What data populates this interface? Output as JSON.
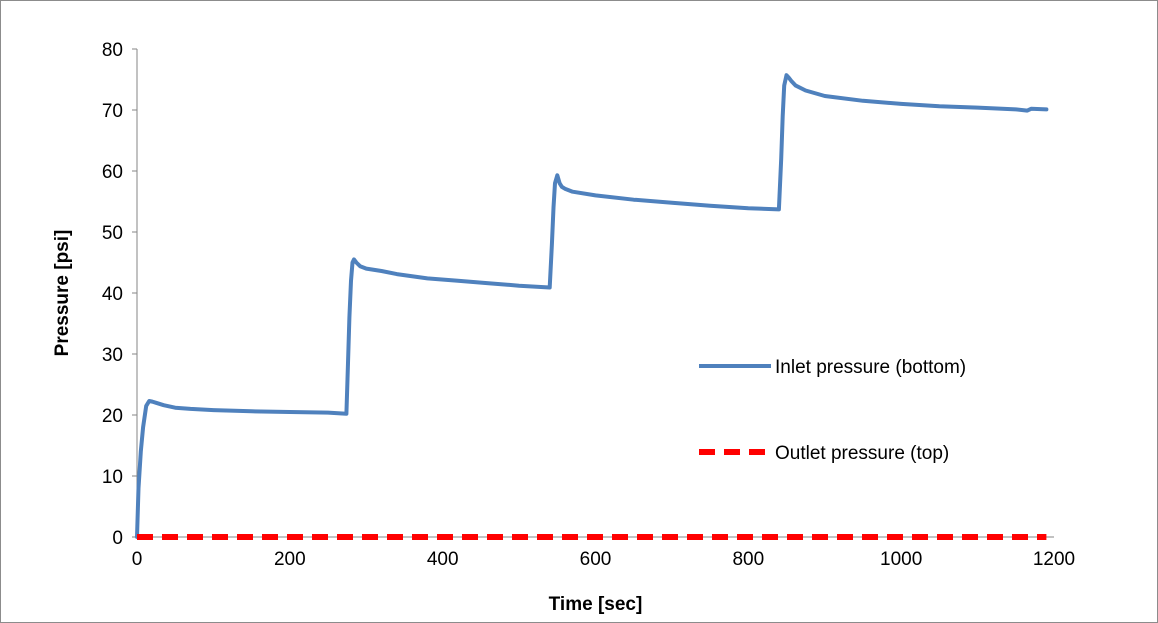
{
  "chart_data": {
    "type": "line",
    "xlabel": "Time [sec]",
    "ylabel": "Pressure [psi]",
    "xlim": [
      0,
      1200
    ],
    "ylim": [
      0,
      80
    ],
    "x_ticks": [
      0,
      200,
      400,
      600,
      800,
      1000,
      1200
    ],
    "y_ticks": [
      0,
      10,
      20,
      30,
      40,
      50,
      60,
      70,
      80
    ],
    "grid": false,
    "legend_position": "right",
    "series": [
      {
        "name": "Inlet pressure (bottom)",
        "color": "#4f81bd",
        "style": "solid",
        "x": [
          0,
          2,
          5,
          8,
          12,
          16,
          20,
          25,
          35,
          50,
          70,
          100,
          150,
          200,
          250,
          274,
          276,
          278,
          280,
          282,
          284,
          287,
          292,
          300,
          320,
          340,
          380,
          420,
          460,
          500,
          540,
          543,
          545,
          547,
          550,
          553,
          556,
          560,
          570,
          600,
          650,
          700,
          750,
          800,
          840,
          843,
          845,
          847,
          850,
          853,
          856,
          862,
          875,
          900,
          950,
          1000,
          1050,
          1100,
          1150,
          1165,
          1170,
          1190
        ],
        "y": [
          0,
          8,
          14,
          18,
          21.5,
          22.3,
          22.2,
          22,
          21.6,
          21.2,
          21,
          20.8,
          20.6,
          20.5,
          20.4,
          20.2,
          28,
          36,
          42,
          45,
          45.5,
          45,
          44.4,
          44,
          43.6,
          43.1,
          42.4,
          42,
          41.6,
          41.2,
          40.9,
          48,
          54,
          58,
          59.3,
          58,
          57.4,
          57.1,
          56.6,
          56,
          55.3,
          54.8,
          54.3,
          53.9,
          53.7,
          62,
          69,
          74,
          75.7,
          75.3,
          74.8,
          74,
          73.2,
          72.3,
          71.5,
          71,
          70.6,
          70.4,
          70.1,
          69.9,
          70.2,
          70.1
        ]
      },
      {
        "name": "Outlet pressure (top)",
        "color": "#ff0000",
        "style": "dashed",
        "x": [
          0,
          1190
        ],
        "y": [
          0,
          0
        ]
      }
    ]
  }
}
